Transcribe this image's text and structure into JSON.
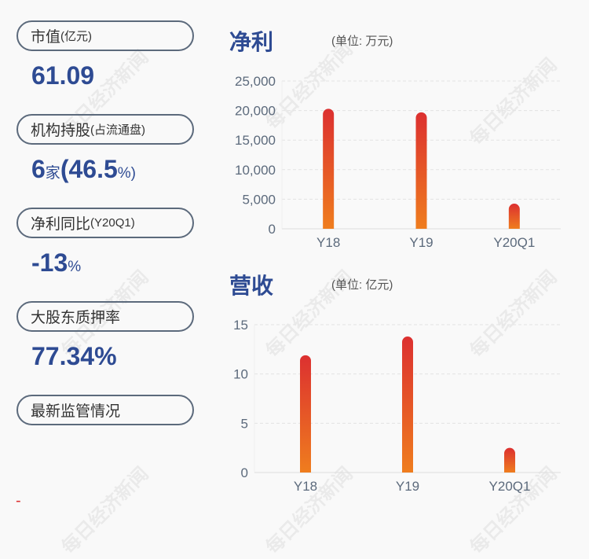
{
  "watermark": "每日经济新闻",
  "metrics": [
    {
      "label": "市值",
      "label_small": "(亿元)",
      "value": "61.09",
      "value_suffix": ""
    },
    {
      "label": "机构持股",
      "label_small": "(占流通盘)",
      "value": "6",
      "value_suffix": "家",
      "value2": "(46.5",
      "value2_suffix": "%)"
    },
    {
      "label": "净利同比",
      "label_small": "(Y20Q1)",
      "value": "-13",
      "value_suffix": "%"
    },
    {
      "label": "大股东质押率",
      "label_small": "",
      "value": "77.34%",
      "value_suffix": ""
    },
    {
      "label": "最新监管情况",
      "label_small": ""
    }
  ],
  "footer_mark": "-",
  "colors": {
    "accent": "#2e4b93",
    "bar_top": "#dc3030",
    "bar_bottom": "#ef7d1e"
  },
  "chart_data": [
    {
      "type": "bar",
      "title": "净利",
      "unit": "(单位: 万元)",
      "categories": [
        "Y18",
        "Y19",
        "Y20Q1"
      ],
      "values": [
        20300,
        19700,
        4250
      ],
      "ylim": [
        0,
        25000
      ],
      "yticks": [
        "0",
        "5,000",
        "10,000",
        "15,000",
        "20,000",
        "25,000"
      ],
      "grid": true
    },
    {
      "type": "bar",
      "title": "营收",
      "unit": "(单位: 亿元)",
      "categories": [
        "Y18",
        "Y19",
        "Y20Q1"
      ],
      "values": [
        11.9,
        13.8,
        2.5
      ],
      "ylim": [
        0,
        15
      ],
      "yticks": [
        "0",
        "5",
        "10",
        "15"
      ],
      "grid": true
    }
  ]
}
